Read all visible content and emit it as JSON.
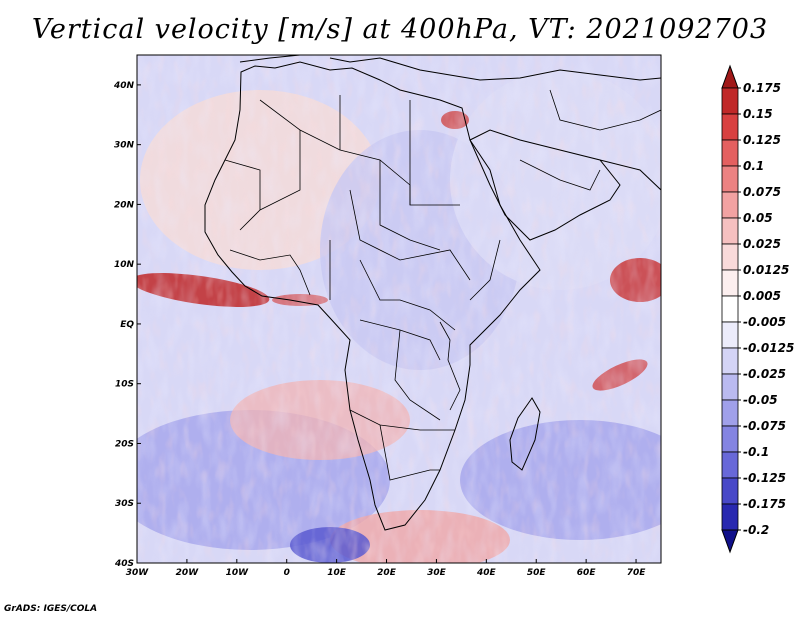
{
  "title": "Vertical velocity [m/s] at 400hPa, VT: 2021092703",
  "credit": "GrADS: IGES/COLA",
  "map": {
    "variable": "Vertical velocity",
    "units": "m/s",
    "level": "400hPa",
    "valid_time": "2021092703",
    "lon_range": [
      -30,
      75
    ],
    "lat_range": [
      -40,
      45
    ],
    "lon_ticks": [
      "30W",
      "20W",
      "10W",
      "0",
      "10E",
      "20E",
      "30E",
      "40E",
      "50E",
      "60E",
      "70E"
    ],
    "lat_ticks": [
      "40N",
      "30N",
      "20N",
      "10N",
      "EQ",
      "10S",
      "20S",
      "30S",
      "40S"
    ]
  },
  "colorbar": {
    "levels": [
      "0.175",
      "0.15",
      "0.125",
      "0.1",
      "0.075",
      "0.05",
      "0.025",
      "0.0125",
      "0.005",
      "-0.005",
      "-0.0125",
      "-0.025",
      "-0.05",
      "-0.075",
      "-0.1",
      "-0.125",
      "-0.175",
      "-0.2"
    ],
    "colors": [
      "#a01818",
      "#c02828",
      "#d84040",
      "#e46060",
      "#ec8282",
      "#f2a2a2",
      "#f6c0c0",
      "#f9dada",
      "#fcefef",
      "#ffffff",
      "#ececfb",
      "#d4d4f6",
      "#babaf0",
      "#a0a0ea",
      "#8484e2",
      "#6868d8",
      "#4848c8",
      "#2828b0",
      "#10108a"
    ]
  },
  "palette": {
    "land_border": "#000000",
    "strong_red": "#c02828",
    "weak_blue": "#b8b8ee"
  }
}
